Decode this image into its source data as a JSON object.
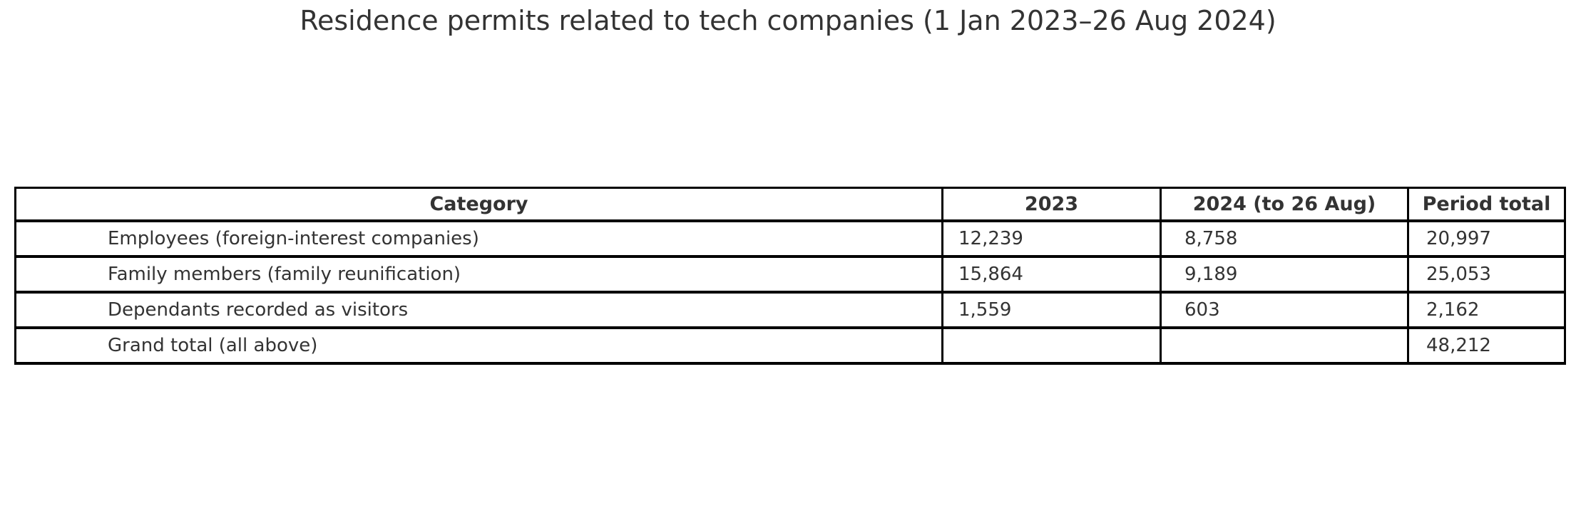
{
  "title": "Residence permits related to tech companies (1 Jan 2023–26 Aug 2024)",
  "colors": {
    "background": "#ffffff",
    "text": "#333333",
    "border": "#000000"
  },
  "chart_data": {
    "type": "table",
    "title": "Residence permits related to tech companies (1 Jan 2023–26 Aug 2024)",
    "columns": [
      "Category",
      "2023",
      "2024 (to 26 Aug)",
      "Period total"
    ],
    "rows": [
      [
        "Employees (foreign-interest companies)",
        "12,239",
        "8,758",
        "20,997"
      ],
      [
        "Family members (family reunification)",
        "15,864",
        "9,189",
        "25,053"
      ],
      [
        "Dependants recorded as visitors",
        "1,559",
        "603",
        "2,162"
      ],
      [
        "Grand total (all above)",
        "",
        "",
        "48,212"
      ]
    ],
    "values_numeric": {
      "categories": [
        "Employees (foreign-interest companies)",
        "Family members (family reunification)",
        "Dependants recorded as visitors"
      ],
      "series": [
        {
          "name": "2023",
          "values": [
            12239,
            15864,
            1559
          ]
        },
        {
          "name": "2024 (to 26 Aug)",
          "values": [
            8758,
            9189,
            603
          ]
        },
        {
          "name": "Period total",
          "values": [
            20997,
            25053,
            2162
          ]
        }
      ],
      "grand_total": 48212
    },
    "layout": {
      "header_bold": true,
      "header_align": "center",
      "body_align": "left",
      "grid": "all-borders"
    }
  }
}
